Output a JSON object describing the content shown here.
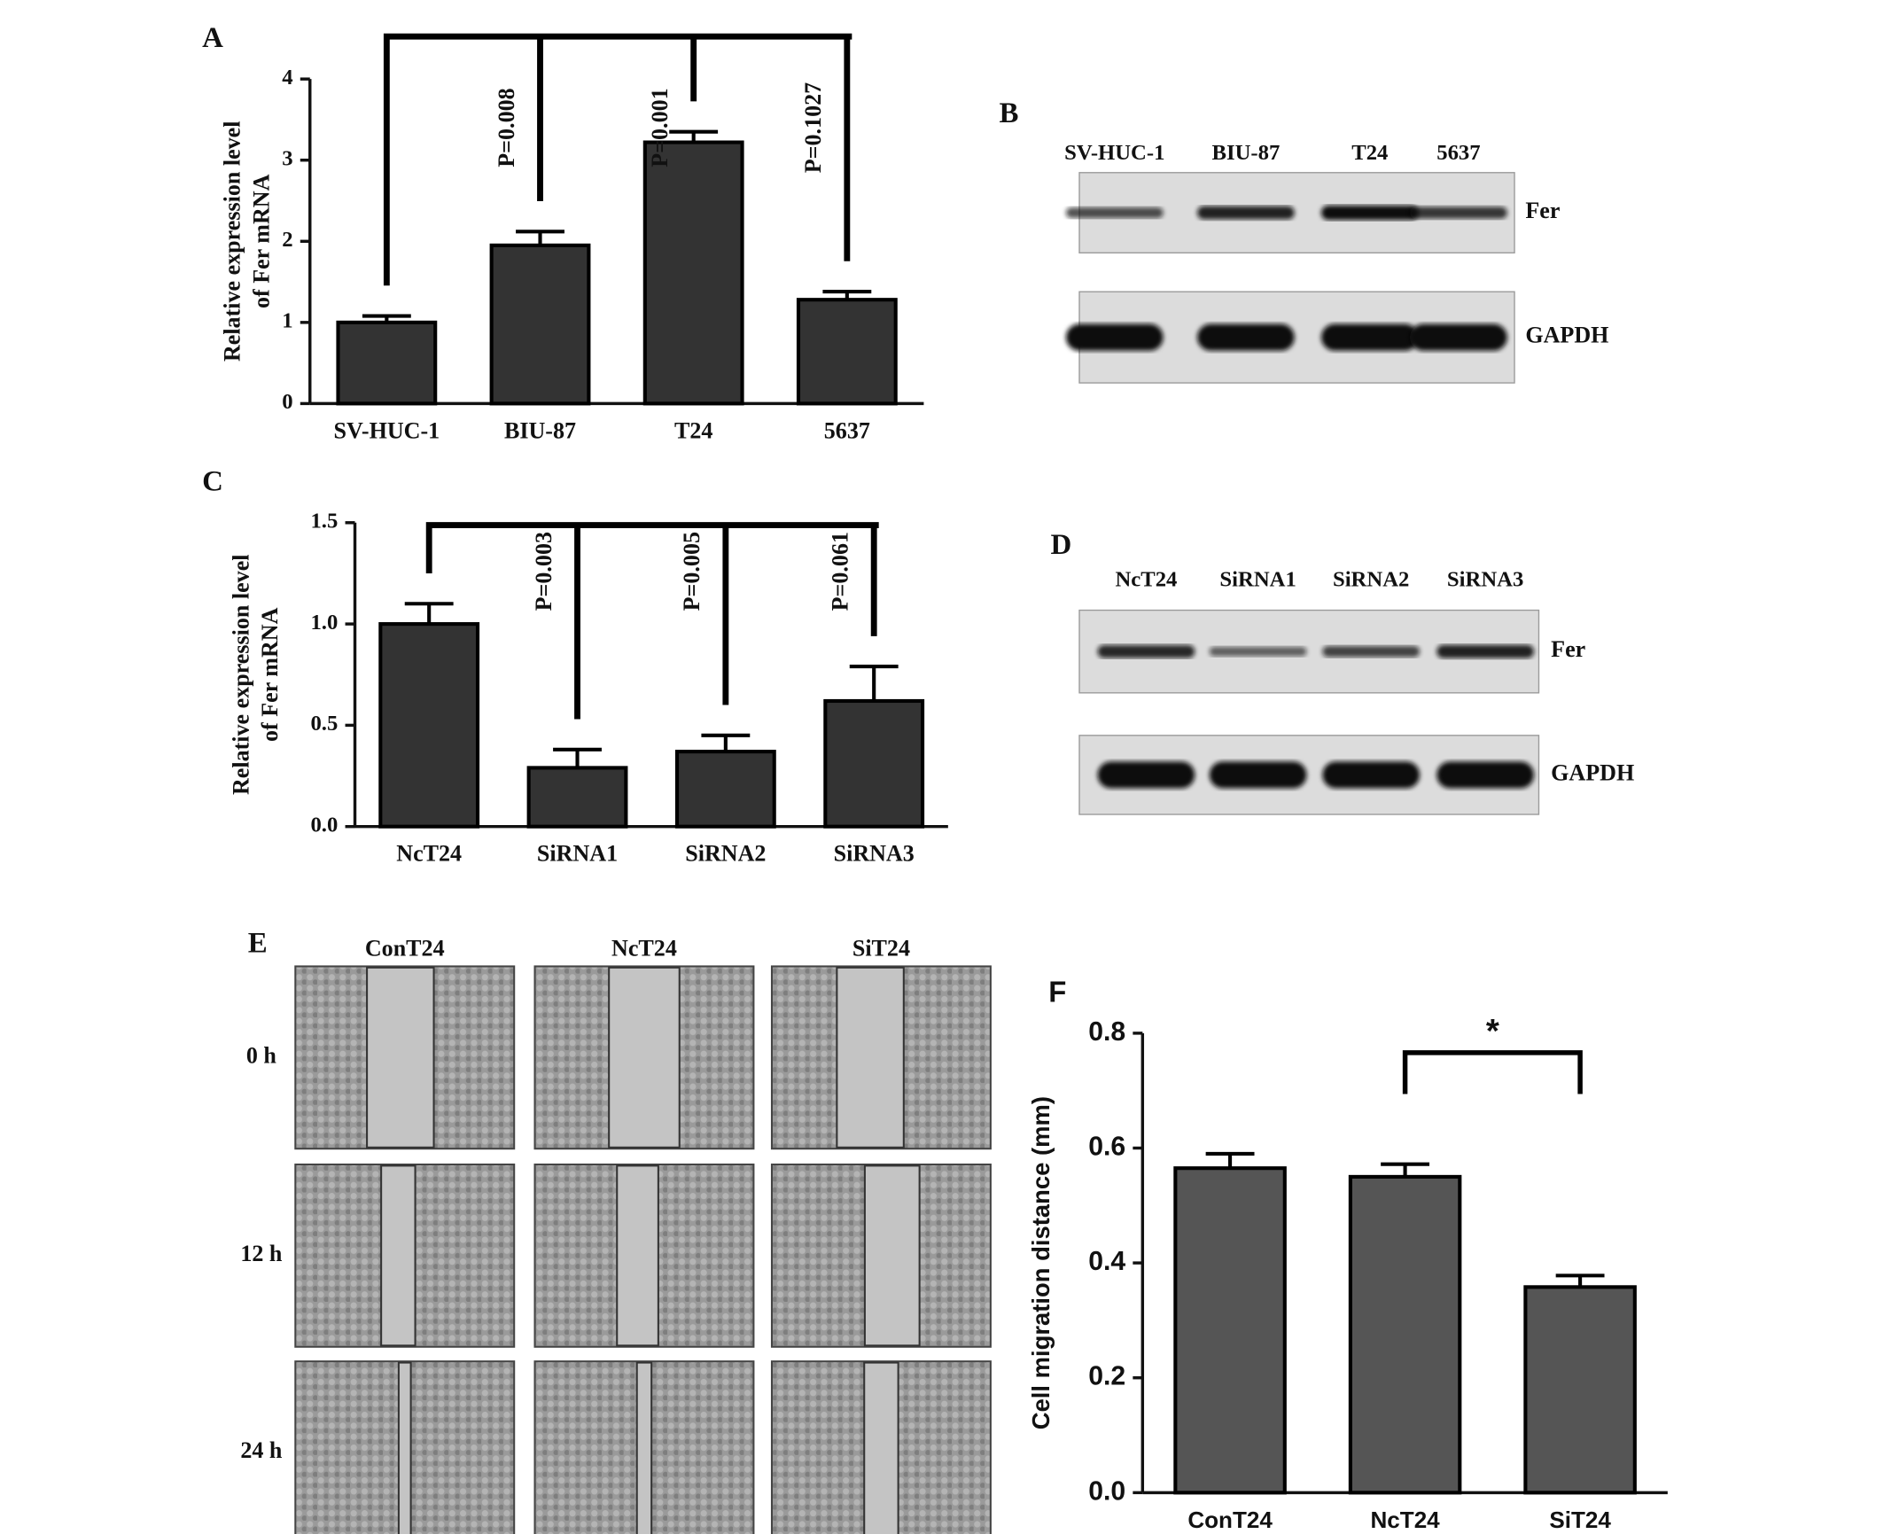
{
  "chart_data": [
    {
      "type": "bar",
      "panel": "A",
      "ylabel": [
        "Relative expression level",
        "of Fer mRNA"
      ],
      "categories": [
        "SV-HUC-1",
        "BIU-87",
        "T24",
        "5637"
      ],
      "values": [
        1.0,
        1.95,
        3.22,
        1.28
      ],
      "errors": [
        0.08,
        0.17,
        0.13,
        0.1
      ],
      "color": "#333333",
      "ylim": [
        0,
        4
      ],
      "yticks": [
        0,
        1,
        2,
        3,
        4
      ],
      "annotations": [
        {
          "text": "P=0.008",
          "category": "BIU-87"
        },
        {
          "text": "P=0.001",
          "category": "T24"
        },
        {
          "text": "P=0.1027",
          "category": "5637"
        }
      ]
    },
    {
      "type": "bar",
      "panel": "C",
      "ylabel": [
        "Relative expression level",
        "of Fer mRNA"
      ],
      "categories": [
        "NcT24",
        "SiRNA1",
        "SiRNA2",
        "SiRNA3"
      ],
      "values": [
        1.0,
        0.29,
        0.37,
        0.62
      ],
      "errors": [
        0.1,
        0.09,
        0.08,
        0.17
      ],
      "color": "#333333",
      "ylim": [
        0,
        1.5
      ],
      "yticks": [
        {
          "value": 0,
          "label": "0.0"
        },
        0.5,
        {
          "value": 1,
          "label": "1.0"
        },
        1.5
      ],
      "annotations": [
        {
          "text": "P=0.003",
          "category": "SiRNA1"
        },
        {
          "text": "P=0.005",
          "category": "SiRNA2"
        },
        {
          "text": "P=0.061",
          "category": "SiRNA3"
        }
      ]
    },
    {
      "type": "bar",
      "panel": "F",
      "ylabel": [
        "Cell migration distance (mm)"
      ],
      "categories": [
        "ConT24",
        "NcT24",
        "SiT24"
      ],
      "values": [
        0.565,
        0.55,
        0.358
      ],
      "errors": [
        0.025,
        0.022,
        0.02
      ],
      "color": "#555555",
      "ylim": [
        0,
        0.8
      ],
      "yticks": [
        {
          "value": 0,
          "label": "0.0"
        },
        0.2,
        0.4,
        0.6,
        0.8
      ],
      "annotations": [
        {
          "text": "*",
          "categories": [
            "NcT24",
            "SiT24"
          ]
        }
      ]
    }
  ],
  "blots": [
    {
      "panel": "B",
      "lanes": [
        "SV-HUC-1",
        "BIU-87",
        "T24",
        "5637"
      ],
      "rows": [
        "Fer",
        "GAPDH"
      ]
    },
    {
      "panel": "D",
      "lanes": [
        "NcT24",
        "SiRNA1",
        "SiRNA2",
        "SiRNA3"
      ],
      "rows": [
        "Fer",
        "GAPDH"
      ]
    }
  ],
  "wound": {
    "panel": "E",
    "columns": [
      "ConT24",
      "NcT24",
      "SiT24"
    ],
    "rows": [
      "0 h",
      "12 h",
      "24 h"
    ]
  }
}
